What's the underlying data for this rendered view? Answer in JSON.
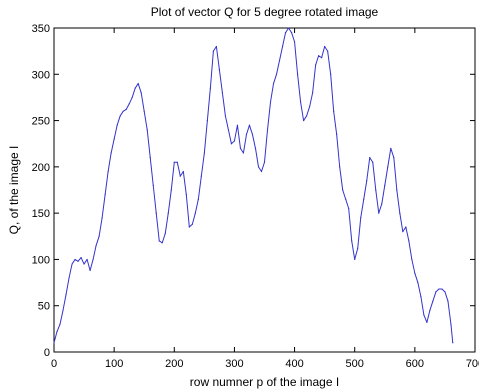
{
  "chart_data": {
    "type": "line",
    "title": "Plot of vector Q for 5 degree rotated image",
    "xlabel": "row numner p of the image I",
    "ylabel": "Q, of the image I",
    "xlim": [
      0,
      700
    ],
    "ylim": [
      0,
      350
    ],
    "xticks": [
      0,
      100,
      200,
      300,
      400,
      500,
      600,
      700
    ],
    "yticks": [
      0,
      50,
      100,
      150,
      200,
      250,
      300,
      350
    ],
    "grid": false,
    "line_color": "#3333cc",
    "series": [
      {
        "x": [
          0,
          5,
          10,
          15,
          20,
          25,
          30,
          35,
          40,
          45,
          50,
          55,
          60,
          65,
          70,
          75,
          80,
          85,
          90,
          95,
          100,
          105,
          110,
          115,
          120,
          125,
          130,
          135,
          140,
          145,
          150,
          155,
          160,
          165,
          170,
          175,
          180,
          185,
          190,
          195,
          200,
          205,
          210,
          215,
          220,
          225,
          230,
          235,
          240,
          245,
          250,
          255,
          260,
          265,
          270,
          275,
          280,
          285,
          290,
          295,
          300,
          305,
          310,
          315,
          320,
          325,
          330,
          335,
          340,
          345,
          350,
          355,
          360,
          365,
          370,
          375,
          380,
          385,
          390,
          395,
          400,
          405,
          410,
          415,
          420,
          425,
          430,
          435,
          440,
          445,
          450,
          455,
          460,
          465,
          470,
          475,
          480,
          485,
          490,
          495,
          500,
          505,
          510,
          515,
          520,
          525,
          530,
          535,
          540,
          545,
          550,
          555,
          560,
          565,
          570,
          575,
          580,
          585,
          590,
          595,
          600,
          605,
          610,
          615,
          620,
          625,
          630,
          635,
          640,
          645,
          650,
          655,
          660,
          663
        ],
        "y": [
          10,
          22,
          30,
          45,
          62,
          80,
          95,
          100,
          98,
          102,
          95,
          100,
          88,
          100,
          115,
          125,
          145,
          170,
          195,
          215,
          230,
          245,
          255,
          260,
          262,
          268,
          275,
          285,
          290,
          280,
          260,
          240,
          210,
          180,
          150,
          120,
          118,
          128,
          150,
          175,
          205,
          205,
          190,
          195,
          170,
          135,
          138,
          150,
          165,
          190,
          215,
          250,
          285,
          325,
          330,
          305,
          280,
          255,
          240,
          225,
          228,
          245,
          220,
          215,
          235,
          245,
          235,
          220,
          200,
          195,
          205,
          240,
          270,
          290,
          300,
          315,
          330,
          345,
          350,
          345,
          335,
          300,
          270,
          250,
          255,
          265,
          280,
          310,
          320,
          318,
          330,
          325,
          300,
          260,
          235,
          200,
          175,
          165,
          155,
          120,
          100,
          112,
          145,
          165,
          185,
          210,
          205,
          175,
          150,
          160,
          180,
          200,
          220,
          210,
          175,
          150,
          130,
          135,
          120,
          100,
          85,
          75,
          60,
          40,
          32,
          45,
          55,
          65,
          68,
          68,
          65,
          55,
          30,
          10
        ]
      }
    ]
  }
}
